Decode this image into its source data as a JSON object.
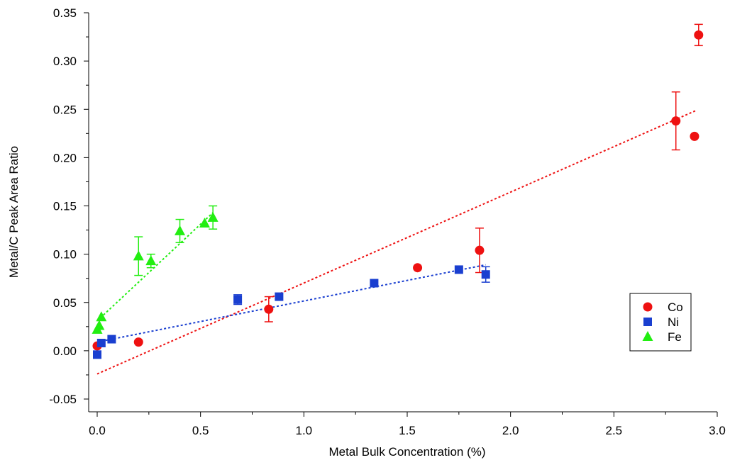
{
  "chart_data": {
    "type": "scatter",
    "xlabel": "Metal Bulk Concentration (%)",
    "ylabel": "Metal/C Peak Area Ratio",
    "xlim": [
      -0.04,
      3.0
    ],
    "ylim": [
      -0.058,
      0.35
    ],
    "x_ticks": [
      0.0,
      0.5,
      1.0,
      1.5,
      2.0,
      2.5,
      3.0
    ],
    "x_tick_labels": [
      "0.0",
      "0.5",
      "1.0",
      "1.5",
      "2.0",
      "2.5",
      "3.0"
    ],
    "y_ticks": [
      -0.05,
      0.0,
      0.05,
      0.1,
      0.15,
      0.2,
      0.25,
      0.3,
      0.35
    ],
    "y_tick_labels": [
      "-0.05",
      "0.00",
      "0.05",
      "0.10",
      "0.15",
      "0.20",
      "0.25",
      "0.30",
      "0.35"
    ],
    "legend_position": "bottom-right",
    "series": [
      {
        "name": "Co",
        "marker": "circle",
        "color": "#ee1111",
        "points": [
          {
            "x": 0.0,
            "y": 0.005
          },
          {
            "x": 0.2,
            "y": 0.009
          },
          {
            "x": 0.83,
            "y": 0.043,
            "err": 0.013
          },
          {
            "x": 1.55,
            "y": 0.086
          },
          {
            "x": 1.85,
            "y": 0.104,
            "err": 0.023
          },
          {
            "x": 2.8,
            "y": 0.238,
            "err": 0.03
          },
          {
            "x": 2.89,
            "y": 0.222
          },
          {
            "x": 2.91,
            "y": 0.327,
            "err": 0.011
          }
        ],
        "fit": {
          "x": [
            0.0,
            2.9
          ],
          "y": [
            -0.024,
            0.249
          ]
        }
      },
      {
        "name": "Ni",
        "marker": "square",
        "color": "#1a3fd0",
        "points": [
          {
            "x": 0.0,
            "y": -0.004
          },
          {
            "x": 0.02,
            "y": 0.008
          },
          {
            "x": 0.07,
            "y": 0.012
          },
          {
            "x": 0.68,
            "y": 0.053,
            "err": 0.005
          },
          {
            "x": 0.88,
            "y": 0.056
          },
          {
            "x": 1.34,
            "y": 0.07
          },
          {
            "x": 1.75,
            "y": 0.084
          },
          {
            "x": 1.88,
            "y": 0.079,
            "err": 0.008
          }
        ],
        "fit": {
          "x": [
            0.0,
            1.88
          ],
          "y": [
            0.009,
            0.089
          ]
        }
      },
      {
        "name": "Fe",
        "marker": "triangle",
        "color": "#22ee11",
        "points": [
          {
            "x": 0.0,
            "y": 0.022
          },
          {
            "x": 0.01,
            "y": 0.026
          },
          {
            "x": 0.02,
            "y": 0.035
          },
          {
            "x": 0.2,
            "y": 0.098,
            "err": 0.02
          },
          {
            "x": 0.26,
            "y": 0.093,
            "err": 0.007
          },
          {
            "x": 0.4,
            "y": 0.124,
            "err": 0.012
          },
          {
            "x": 0.52,
            "y": 0.132
          },
          {
            "x": 0.56,
            "y": 0.138,
            "err": 0.012
          }
        ],
        "fit": {
          "x": [
            0.0,
            0.56
          ],
          "y": [
            0.031,
            0.143
          ]
        }
      }
    ]
  }
}
